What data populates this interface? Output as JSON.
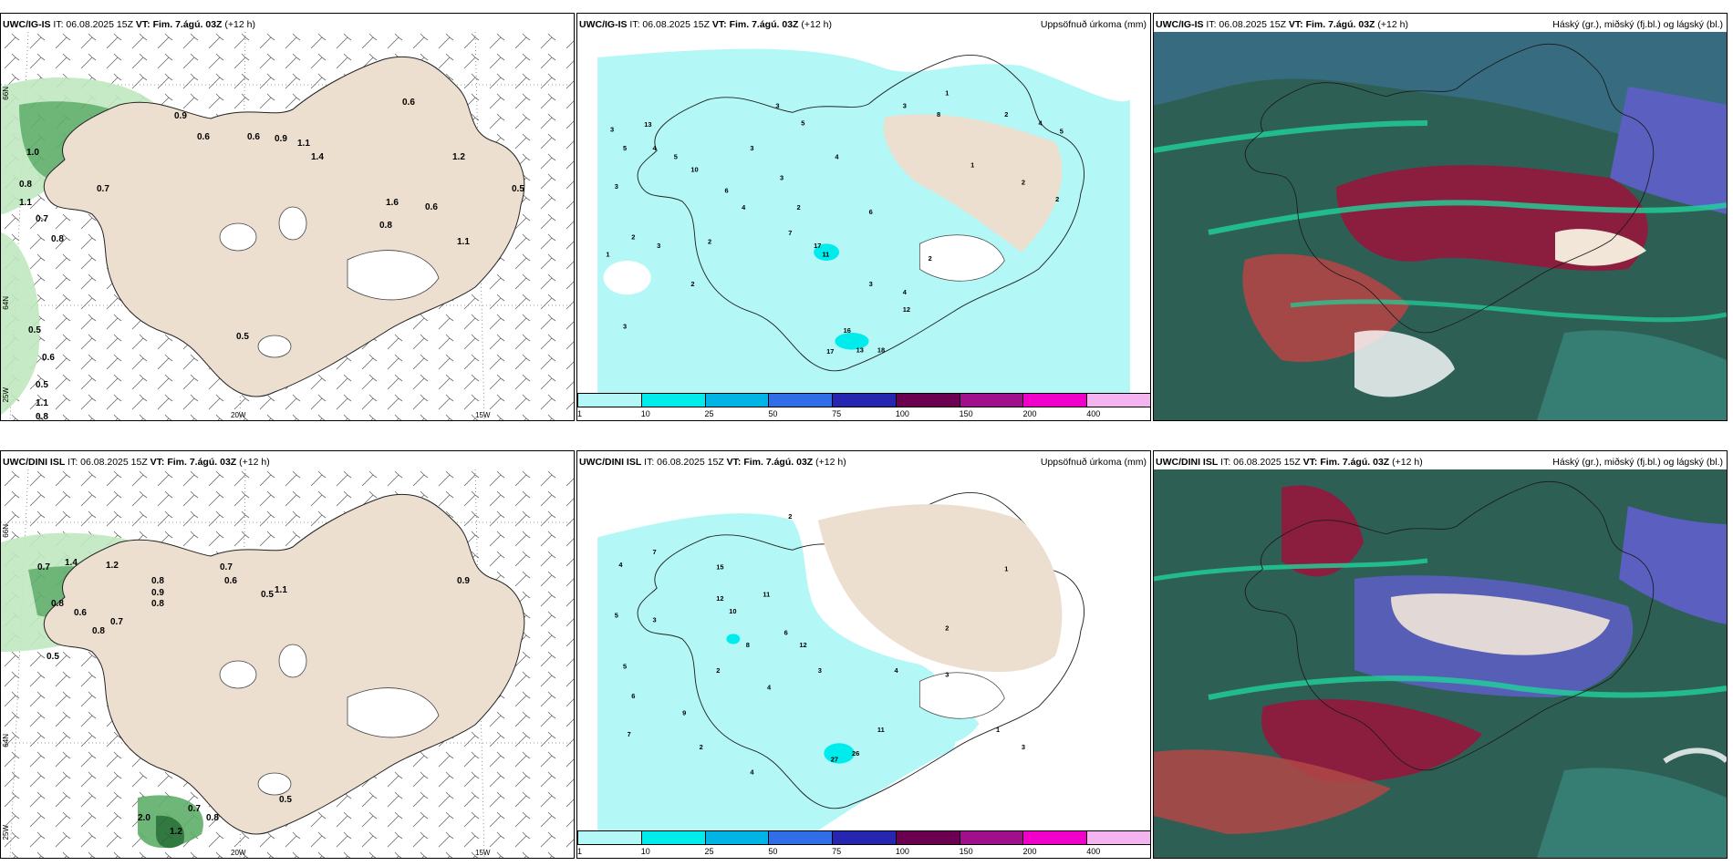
{
  "panels": {
    "p1": {
      "model": "UWC/IG-IS",
      "rest": "IT: 06.08.2025 15Z",
      "vt": "VT: Fim. 7.ágú. 03Z",
      "lead": "(+12 h)",
      "sub": ""
    },
    "p2": {
      "model": "UWC/IG-IS",
      "rest": "IT: 06.08.2025 15Z",
      "vt": "VT: Fim. 7.ágú. 03Z",
      "lead": "(+12 h)",
      "sub": "Uppsöfnuð úrkoma (mm)"
    },
    "p3": {
      "model": "UWC/IG-IS",
      "rest": "IT: 06.08.2025 15Z",
      "vt": "VT: Fim. 7.ágú. 03Z",
      "lead": "(+12 h)",
      "sub": "Háský (gr.), miðský (fj.bl.) og lágský (bl.)"
    },
    "p4": {
      "model": "UWC/DINI ISL",
      "rest": "IT: 06.08.2025 15Z",
      "vt": "VT: Fim. 7.ágú. 03Z",
      "lead": "(+12 h)",
      "sub": ""
    },
    "p5": {
      "model": "UWC/DINI ISL",
      "rest": "IT: 06.08.2025 15Z",
      "vt": "VT: Fim. 7.ágú. 03Z",
      "lead": "(+12 h)",
      "sub": "Uppsöfnuð úrkoma (mm)"
    },
    "p6": {
      "model": "UWC/DINI ISL",
      "rest": "IT: 06.08.2025 15Z",
      "vt": "VT: Fim. 7.ágú. 03Z",
      "lead": "(+12 h)",
      "sub": "Háský (gr.), miðský (fj.bl.) og lágský (bl.)"
    }
  },
  "axis_labels": {
    "lat66": "66N",
    "lat64": "64N",
    "lon25": "25W",
    "lon20": "20W",
    "lon15": "15W"
  },
  "colorbar": {
    "ticks": [
      "1",
      "10",
      "25",
      "50",
      "75",
      "100",
      "150",
      "200",
      "400"
    ],
    "colors": [
      "#b3f7f7",
      "#00ecec",
      "#00b4e6",
      "#2f6ee6",
      "#2626b0",
      "#6b0050",
      "#a0108c",
      "#f000c8",
      "#f4b4f0"
    ]
  },
  "wind_labels_top": [
    "0.6",
    "0.9",
    "1.0",
    "0.8",
    "0.6",
    "0.9",
    "1.1",
    "1.2",
    "0.6",
    "1.4",
    "0.7",
    "1.1",
    "1.6",
    "0.6",
    "0.5",
    "0.8",
    "0.7",
    "0.8",
    "1.1",
    "0.5",
    "0.6",
    "0.5",
    "0.8",
    "1.1",
    "0.5"
  ],
  "wind_labels_bottom": [
    "0.7",
    "1.4",
    "1.2",
    "0.8",
    "0.9",
    "0.6",
    "0.7",
    "1.1",
    "0.5",
    "0.8",
    "0.6",
    "0.9",
    "0.8",
    "0.7",
    "0.5",
    "0.8",
    "0.5",
    "1.2",
    "0.7",
    "2.0",
    "0.8"
  ],
  "precip_labels_top": [
    "3",
    "13",
    "5",
    "4",
    "5",
    "3",
    "10",
    "2",
    "1",
    "3",
    "2",
    "4",
    "6",
    "3",
    "2",
    "11",
    "7",
    "17",
    "3",
    "4",
    "2",
    "12",
    "16",
    "13",
    "18",
    "17",
    "3",
    "2",
    "6",
    "1",
    "2",
    "8",
    "3",
    "3",
    "4",
    "3",
    "5",
    "2",
    "1",
    "2",
    "4",
    "5"
  ],
  "precip_labels_bottom": [
    "2",
    "7",
    "4",
    "5",
    "3",
    "15",
    "12",
    "10",
    "8",
    "11",
    "6",
    "12",
    "3",
    "4",
    "2",
    "27",
    "26",
    "11",
    "4",
    "2",
    "1",
    "3",
    "5",
    "6",
    "7",
    "9",
    "2",
    "4",
    "1",
    "3"
  ]
}
